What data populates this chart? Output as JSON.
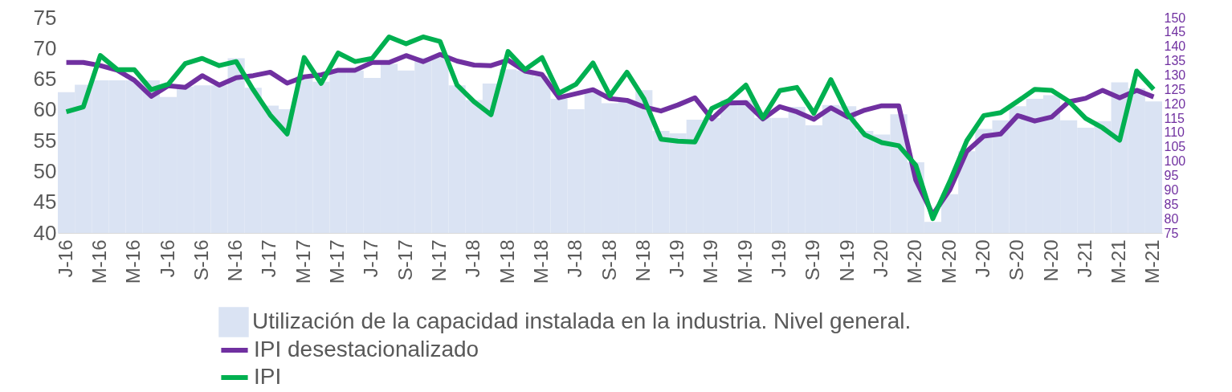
{
  "chart_data": {
    "type": "bar",
    "categories": [
      "J-16",
      null,
      "M-16",
      null,
      "M-16",
      null,
      "J-16",
      null,
      "S-16",
      null,
      "N-16",
      null,
      "J-17",
      null,
      "M-17",
      null,
      "M-17",
      null,
      "J-17",
      null,
      "S-17",
      null,
      "N-17",
      null,
      "J-18",
      null,
      "M-18",
      null,
      "M-18",
      null,
      "J-18",
      null,
      "S-18",
      null,
      "N-18",
      null,
      "J-19",
      null,
      "M-19",
      null,
      "M-19",
      null,
      "J-19",
      null,
      "S-19",
      null,
      "N-19",
      null,
      "J-20",
      null,
      "M-20",
      null,
      "M-20",
      null,
      "J-20",
      null,
      "S-20",
      null,
      "N-20",
      null,
      "J-21",
      null,
      "M-21",
      null,
      "M-21"
    ],
    "series": [
      {
        "name": "Utilización de la capacidad instalada en la industria. Nivel general.",
        "axis": "y",
        "color": "#dae3f3",
        "values": [
          62.9,
          64.1,
          64.8,
          64.8,
          64.8,
          64.8,
          62.1,
          63.8,
          64.0,
          64.0,
          68.4,
          63.6,
          60.7,
          60.1,
          65.5,
          64.6,
          66.4,
          66.4,
          65.2,
          67.5,
          66.4,
          68.5,
          68.7,
          64.0,
          61.6,
          64.3,
          66.6,
          66.4,
          65.5,
          61.8,
          60.1,
          62.9,
          61.1,
          61.3,
          63.2,
          56.6,
          56.2,
          58.4,
          58.7,
          61.6,
          61.6,
          58.7,
          58.7,
          60.5,
          57.5,
          60.8,
          60.6,
          56.6,
          56.0,
          59.3,
          51.5,
          41.8,
          46.3,
          53.3,
          56.9,
          58.3,
          60.6,
          61.8,
          62.4,
          58.3,
          57.1,
          58.2,
          64.5,
          63.5,
          61.4
        ]
      },
      {
        "name": "IPI desestacionalizado",
        "type": "line",
        "axis": "y2",
        "color": "#7030a0",
        "values": [
          134.4,
          134.4,
          133.3,
          131.7,
          128.2,
          122.6,
          126.3,
          125.7,
          129.8,
          126.5,
          129.1,
          129.8,
          131.0,
          127.2,
          129.4,
          130.1,
          131.7,
          131.7,
          134.4,
          134.4,
          136.8,
          134.7,
          137.2,
          134.9,
          133.5,
          133.3,
          135.2,
          131.4,
          130.2,
          122.1,
          123.5,
          124.9,
          121.8,
          121.2,
          118.9,
          117.5,
          119.6,
          122.1,
          114.7,
          120.3,
          120.4,
          114.7,
          119.0,
          117.2,
          114.6,
          118.6,
          115.4,
          117.8,
          119.3,
          119.3,
          93.4,
          81.4,
          90.0,
          103.4,
          108.7,
          109.5,
          115.9,
          114.0,
          115.4,
          120.7,
          121.9,
          124.7,
          122.1,
          124.7,
          122.4
        ]
      },
      {
        "name": "IPI",
        "type": "line",
        "axis": "y2",
        "color": "#00b050",
        "values": [
          117.2,
          118.9,
          136.8,
          131.9,
          131.9,
          124.9,
          126.8,
          134.0,
          135.8,
          133.3,
          134.7,
          124.9,
          116.1,
          109.5,
          136.1,
          127.1,
          137.7,
          134.7,
          135.8,
          143.3,
          140.9,
          143.3,
          141.7,
          126.5,
          120.7,
          116.2,
          138.2,
          131.9,
          136.1,
          123.7,
          126.8,
          134.2,
          122.8,
          131.0,
          121.7,
          107.7,
          107.0,
          106.7,
          118.4,
          121.2,
          126.5,
          115.1,
          124.6,
          125.7,
          116.7,
          128.4,
          116.4,
          109.2,
          106.5,
          105.4,
          98.6,
          80.0,
          92.9,
          107.1,
          115.9,
          116.9,
          120.9,
          125.0,
          124.7,
          120.9,
          114.9,
          111.6,
          107.3,
          131.4,
          125.0
        ]
      }
    ],
    "ylim": [
      40,
      75
    ],
    "yticks": [
      40,
      45,
      50,
      55,
      60,
      65,
      70,
      75
    ],
    "y2lim": [
      75,
      150
    ],
    "y2ticks": [
      75,
      80,
      85,
      90,
      95,
      100,
      105,
      110,
      115,
      120,
      125,
      130,
      135,
      140,
      145,
      150
    ],
    "grid": false,
    "legend": "bottom",
    "line_style": "solid"
  }
}
